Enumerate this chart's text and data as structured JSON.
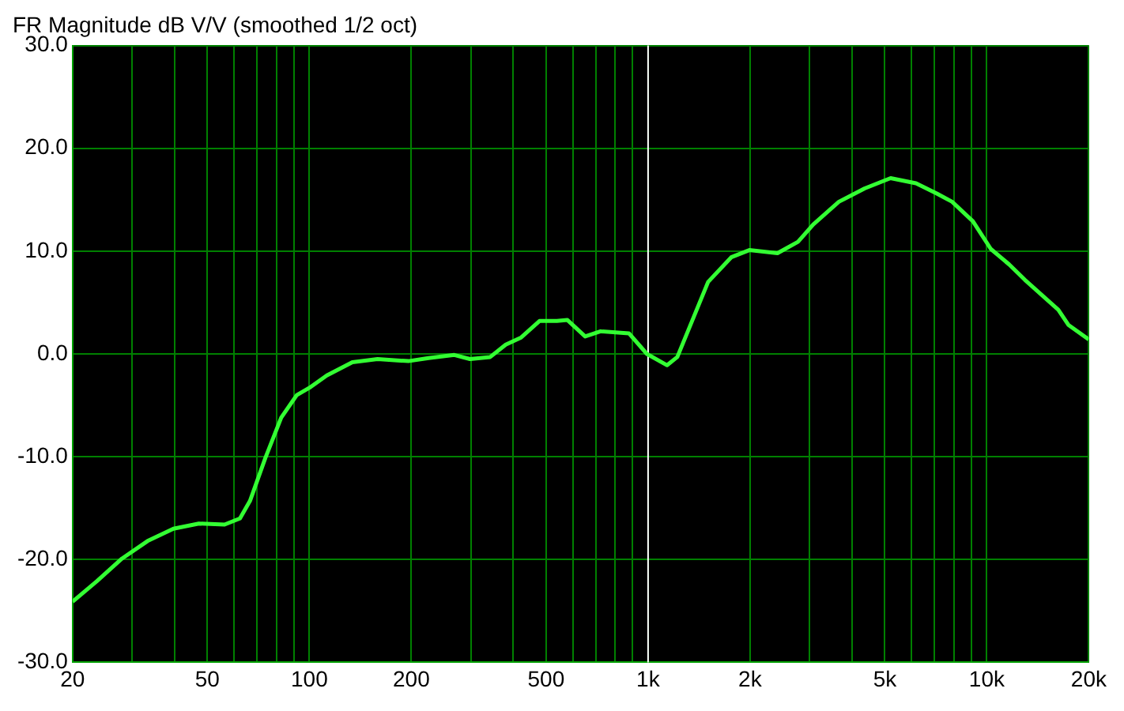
{
  "chart_data": {
    "type": "line",
    "title": "FR Magnitude dB V/V (smoothed 1/2 oct)",
    "log": "x",
    "grid": true,
    "marker": "none",
    "line_style": "solid",
    "xlim": [
      20,
      20000
    ],
    "xticks": [
      {
        "value": 20,
        "label": "20"
      },
      {
        "value": 30,
        "label": null
      },
      {
        "value": 40,
        "label": null
      },
      {
        "value": 50,
        "label": "50"
      },
      {
        "value": 60,
        "label": null
      },
      {
        "value": 70,
        "label": null
      },
      {
        "value": 80,
        "label": null
      },
      {
        "value": 90,
        "label": null
      },
      {
        "value": 100,
        "label": "100"
      },
      {
        "value": 200,
        "label": "200"
      },
      {
        "value": 300,
        "label": null
      },
      {
        "value": 400,
        "label": null
      },
      {
        "value": 500,
        "label": "500"
      },
      {
        "value": 600,
        "label": null
      },
      {
        "value": 700,
        "label": null
      },
      {
        "value": 800,
        "label": null
      },
      {
        "value": 900,
        "label": null
      },
      {
        "value": 1000,
        "label": "1k"
      },
      {
        "value": 2000,
        "label": "2k"
      },
      {
        "value": 3000,
        "label": null
      },
      {
        "value": 4000,
        "label": null
      },
      {
        "value": 5000,
        "label": "5k"
      },
      {
        "value": 6000,
        "label": null
      },
      {
        "value": 7000,
        "label": null
      },
      {
        "value": 8000,
        "label": null
      },
      {
        "value": 9000,
        "label": null
      },
      {
        "value": 10000,
        "label": "10k"
      },
      {
        "value": 20000,
        "label": "20k"
      }
    ],
    "ylim": [
      -30,
      30
    ],
    "yticks": [
      {
        "value": -30,
        "label": "-30.0"
      },
      {
        "value": -20,
        "label": "-20.0"
      },
      {
        "value": -10,
        "label": "-10.0"
      },
      {
        "value": 0,
        "label": "0.0"
      },
      {
        "value": 10,
        "label": "10.0"
      },
      {
        "value": 20,
        "label": "20.0"
      },
      {
        "value": 30,
        "label": "30.0"
      }
    ],
    "ref_lines": [
      {
        "axis": "x",
        "value": 1000,
        "color": "#ffffff"
      }
    ],
    "x": [
      20,
      23.6,
      28,
      33.3,
      39.7,
      47.2,
      56.2,
      62.4,
      66.8,
      74.2,
      82.6,
      91.8,
      100,
      112.6,
      134,
      159,
      196,
      225,
      268,
      298,
      342,
      380,
      422,
      478,
      538,
      578,
      652,
      724,
      878,
      992,
      1138,
      1220,
      1504,
      1760,
      1990,
      2410,
      2770,
      3074,
      3658,
      4360,
      5200,
      6180,
      7120,
      7900,
      9100,
      10280,
      11640,
      12960,
      16260,
      17440,
      20000
    ],
    "series": [
      {
        "color": "#33ff33",
        "values": [
          -24.1,
          -22.1,
          -19.9,
          -18.2,
          -17.0,
          -16.5,
          -16.6,
          -16.0,
          -14.3,
          -10.1,
          -6.2,
          -4.0,
          -3.3,
          -2.1,
          -0.8,
          -0.5,
          -0.7,
          -0.4,
          -0.1,
          -0.5,
          -0.3,
          0.9,
          1.6,
          3.2,
          3.2,
          3.3,
          1.7,
          2.2,
          2.0,
          0.0,
          -1.1,
          -0.3,
          7.0,
          9.4,
          10.1,
          9.8,
          10.9,
          12.6,
          14.8,
          16.1,
          17.1,
          16.6,
          15.6,
          14.8,
          12.9,
          10.2,
          8.7,
          7.2,
          4.3,
          2.8,
          1.4
        ]
      }
    ]
  }
}
